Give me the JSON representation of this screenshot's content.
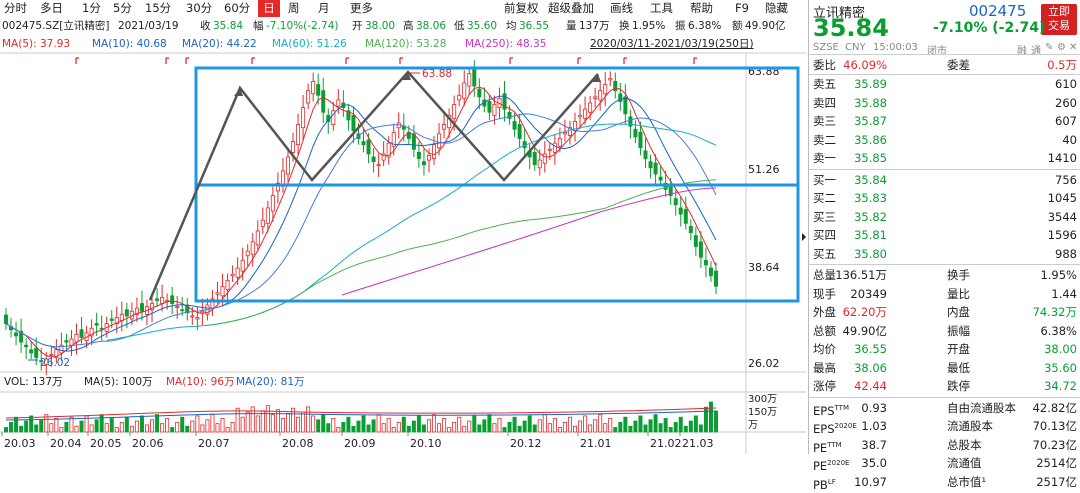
{
  "toolbar": {
    "tabs": [
      "分时",
      "多日",
      "1分",
      "5分",
      "15分",
      "30分",
      "60分",
      "日",
      "周",
      "月",
      "更多"
    ],
    "active": "日",
    "right": [
      "前复权",
      "超级叠加",
      "画线",
      "工具",
      "帮助",
      "F9",
      "隐藏"
    ]
  },
  "info": {
    "code": "002475.SZ[立讯精密]",
    "date": "2021/03/19",
    "close_label": "收",
    "close": "35.84",
    "change_label": "幅",
    "change": "-7.10%(-2.74)",
    "open_label": "开",
    "open": "38.00",
    "high_label": "高",
    "high": "38.06",
    "low_label": "低",
    "low": "35.60",
    "avg_label": "均",
    "avg": "36.55",
    "vol_label": "量",
    "vol": "137万",
    "turnover_label": "换",
    "turnover": "1.95%",
    "amp_label": "振",
    "amp": "6.38%",
    "amount_label": "额",
    "amount": "49.90亿"
  },
  "ma_row": {
    "items": [
      {
        "text": "MA(5): 37.93",
        "color": "#e62828"
      },
      {
        "text": "MA(10): 40.68",
        "color": "#1a64c8"
      },
      {
        "text": "MA(20): 44.22",
        "color": "#1a64c8"
      },
      {
        "text": "MA(60): 51.26",
        "color": "#12b0c8"
      },
      {
        "text": "MA(120): 53.28",
        "color": "#4caf50"
      },
      {
        "text": "MA(250): 48.35",
        "color": "#c832c8"
      }
    ],
    "range": "2020/03/11-2021/03/19(250日)"
  },
  "vol_row": {
    "items": [
      {
        "text": "VOL: 137万",
        "color": "#222"
      },
      {
        "text": "MA(5): 100万",
        "color": "#222"
      },
      {
        "text": "MA(10): 96万",
        "color": "#e62828"
      },
      {
        "text": "MA(20): 81万",
        "color": "#1a64c8"
      }
    ]
  },
  "chart_data": {
    "type": "candlestick",
    "price_axis_ticks": [
      "63.88",
      "51.26",
      "38.64",
      "26.02"
    ],
    "price_ylim": [
      26.02,
      63.88
    ],
    "volume_axis_ticks": [
      "300万",
      "150万",
      "万"
    ],
    "x_ticks": [
      "20.03",
      "20.04",
      "20.05",
      "20.06",
      "20.07",
      "20.08",
      "20.09",
      "20.10",
      "20.12",
      "21.01",
      "21.02",
      "21.03"
    ],
    "max_label": "63.88",
    "min_label": "26.02",
    "closes": [
      31.0,
      30.2,
      29.4,
      28.6,
      28.0,
      27.2,
      26.6,
      26.1,
      26.4,
      27.0,
      27.6,
      28.2,
      28.6,
      29.0,
      29.6,
      29.2,
      29.8,
      30.4,
      30.8,
      30.4,
      31.0,
      31.4,
      31.8,
      32.2,
      32.0,
      32.6,
      33.0,
      32.6,
      33.2,
      33.6,
      34.0,
      34.4,
      34.0,
      33.6,
      33.2,
      32.8,
      32.4,
      32.0,
      31.8,
      32.6,
      33.4,
      34.2,
      35.0,
      35.8,
      36.6,
      37.4,
      38.2,
      39.2,
      40.4,
      41.6,
      43.0,
      44.4,
      46.0,
      47.6,
      49.2,
      50.8,
      52.6,
      54.6,
      56.8,
      59.0,
      61.2,
      62.4,
      60.6,
      58.4,
      57.2,
      58.6,
      60.0,
      59.0,
      57.4,
      56.0,
      55.0,
      54.2,
      53.0,
      52.0,
      51.6,
      53.0,
      54.4,
      55.8,
      57.0,
      56.2,
      55.0,
      53.6,
      52.4,
      51.6,
      52.8,
      54.2,
      55.6,
      56.8,
      58.0,
      59.4,
      60.6,
      62.2,
      63.4,
      61.8,
      60.4,
      59.2,
      58.4,
      59.4,
      60.2,
      58.8,
      57.6,
      56.2,
      55.0,
      53.8,
      52.6,
      51.6,
      52.2,
      53.0,
      53.6,
      54.4,
      55.0,
      55.8,
      56.4,
      57.2,
      58.0,
      58.8,
      59.6,
      60.4,
      61.2,
      62.0,
      62.8,
      61.2,
      59.8,
      58.2,
      56.6,
      55.2,
      53.8,
      52.4,
      51.2,
      50.4,
      49.6,
      48.4,
      47.6,
      46.4,
      45.2,
      44.0,
      42.8,
      41.0,
      39.6,
      38.6,
      37.2,
      35.84
    ],
    "volume_ylim": [
      0,
      3000000
    ],
    "annotations": [
      "double-top/triangle pattern with blue rectangles"
    ]
  },
  "panel": {
    "name": "立讯精密",
    "code": "002475",
    "price": "35.84",
    "change": "-7.10% (-2.74)",
    "buy_btn": "立即\n交易",
    "exch": "SZSE",
    "cur": "CNY",
    "time": "15:00:03",
    "status": "闭市",
    "ctrls": [
      "融",
      "通",
      "✎",
      "⚙",
      "✕"
    ],
    "weibi_label": "委比",
    "weibi": "46.09%",
    "weicha_label": "委差",
    "weicha": "0.5万",
    "sells": [
      {
        "label": "卖五",
        "price": "35.89",
        "vol": "610"
      },
      {
        "label": "卖四",
        "price": "35.88",
        "vol": "260"
      },
      {
        "label": "卖三",
        "price": "35.87",
        "vol": "607"
      },
      {
        "label": "卖二",
        "price": "35.86",
        "vol": "40"
      },
      {
        "label": "卖一",
        "price": "35.85",
        "vol": "1410"
      }
    ],
    "buys": [
      {
        "label": "买一",
        "price": "35.84",
        "vol": "756"
      },
      {
        "label": "买二",
        "price": "35.83",
        "vol": "1045"
      },
      {
        "label": "买三",
        "price": "35.82",
        "vol": "3544"
      },
      {
        "label": "买四",
        "price": "35.81",
        "vol": "1596"
      },
      {
        "label": "买五",
        "price": "35.80",
        "vol": "988"
      }
    ],
    "stats": [
      {
        "l1": "总量",
        "v1": "136.51万",
        "c1": "#222",
        "l2": "换手",
        "v2": "1.95%",
        "c2": "#222"
      },
      {
        "l1": "现手",
        "v1": "20349",
        "c1": "#222",
        "l2": "量比",
        "v2": "1.44",
        "c2": "#222"
      },
      {
        "l1": "外盘",
        "v1": "62.20万",
        "c1": "#e62828",
        "l2": "内盘",
        "v2": "74.32万",
        "c2": "#0a9e32"
      },
      {
        "l1": "总额",
        "v1": "49.90亿",
        "c1": "#222",
        "l2": "振幅",
        "v2": "6.38%",
        "c2": "#222"
      },
      {
        "l1": "均价",
        "v1": "36.55",
        "c1": "#0a9e32",
        "l2": "开盘",
        "v2": "38.00",
        "c2": "#0a9e32"
      },
      {
        "l1": "最高",
        "v1": "38.06",
        "c1": "#0a9e32",
        "l2": "最低",
        "v2": "35.60",
        "c2": "#0a9e32"
      },
      {
        "l1": "涨停",
        "v1": "42.44",
        "c1": "#e62828",
        "l2": "跌停",
        "v2": "34.72",
        "c2": "#0a9e32"
      }
    ],
    "fin": [
      {
        "l1": "EPS",
        "s1": "TTM",
        "v1": "0.93",
        "l2": "自由流通股本",
        "v2": "42.82亿"
      },
      {
        "l1": "EPS",
        "s1": "2020E",
        "v1": "1.03",
        "l2": "流通股本",
        "v2": "70.13亿"
      },
      {
        "l1": "PE",
        "s1": "TTM",
        "v1": "38.7",
        "l2": "总股本",
        "v2": "70.23亿"
      },
      {
        "l1": "PE",
        "s1": "2020E",
        "v1": "35.0",
        "l2": "流通值",
        "v2": "2514亿"
      },
      {
        "l1": "PB",
        "s1": "LF",
        "v1": "10.97",
        "l2": "总市值¹",
        "v2": "2517亿"
      }
    ]
  }
}
